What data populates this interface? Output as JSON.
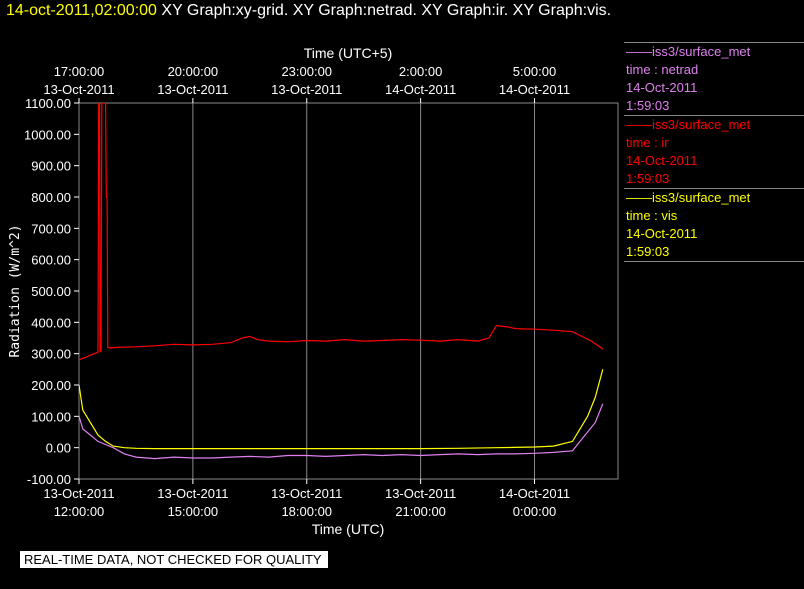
{
  "header": {
    "timestamp": "14-oct-2011,02:00:00",
    "graphs": "XY Graph:xy-grid.  XY Graph:netrad.  XY Graph:ir.  XY Graph:vis."
  },
  "legend": [
    {
      "name": "——iss3/surface_met",
      "var": "time : netrad",
      "date": "14-Oct-2011",
      "time": "1:59:03",
      "color": "#e080f0"
    },
    {
      "name": "——iss3/surface_met",
      "var": "time : ir",
      "date": "14-Oct-2011",
      "time": "1:59:03",
      "color": "#ff0000"
    },
    {
      "name": "——iss3/surface_met",
      "var": "time : vis",
      "date": "14-Oct-2011",
      "time": "1:59:03",
      "color": "#ffff00"
    }
  ],
  "banner": "REAL-TIME DATA, NOT CHECKED FOR QUALITY",
  "chart_data": {
    "type": "line",
    "xlabel": "Time (UTC)",
    "x2label": "Time (UTC+5)",
    "ylabel": "Radiation (W/m^2)",
    "ylim": [
      -100,
      1100
    ],
    "xlim": [
      0,
      14.2
    ],
    "yticks": [
      "1100.00",
      "1000.00",
      "900.00",
      "800.00",
      "700.00",
      "600.00",
      "500.00",
      "400.00",
      "300.00",
      "200.00",
      "100.00",
      "0.00",
      "-100.00"
    ],
    "ytick_values": [
      1100,
      1000,
      900,
      800,
      700,
      600,
      500,
      400,
      300,
      200,
      100,
      0,
      -100
    ],
    "xticks_bottom": [
      {
        "x": 0,
        "date": "13-Oct-2011",
        "time": "12:00:00"
      },
      {
        "x": 3,
        "date": "13-Oct-2011",
        "time": "15:00:00"
      },
      {
        "x": 6,
        "date": "13-Oct-2011",
        "time": "18:00:00"
      },
      {
        "x": 9,
        "date": "13-Oct-2011",
        "time": "21:00:00"
      },
      {
        "x": 12,
        "date": "14-Oct-2011",
        "time": "0:00:00"
      }
    ],
    "xticks_top": [
      {
        "x": 0,
        "date": "13-Oct-2011",
        "time": "17:00:00"
      },
      {
        "x": 3,
        "date": "13-Oct-2011",
        "time": "20:00:00"
      },
      {
        "x": 6,
        "date": "13-Oct-2011",
        "time": "23:00:00"
      },
      {
        "x": 9,
        "date": "14-Oct-2011",
        "time": "2:00:00"
      },
      {
        "x": 12,
        "date": "14-Oct-2011",
        "time": "5:00:00"
      }
    ],
    "grid": true,
    "series": [
      {
        "name": "ir",
        "color": "#ff0000",
        "x": [
          0,
          0.2,
          0.4,
          0.5,
          0.52,
          0.54,
          0.56,
          0.58,
          0.6,
          0.7,
          0.72,
          0.74,
          0.76,
          0.78,
          0.8,
          1.0,
          1.5,
          2.0,
          2.5,
          3.0,
          3.5,
          4.0,
          4.3,
          4.5,
          4.7,
          5.0,
          5.5,
          6.0,
          6.5,
          7.0,
          7.5,
          8.0,
          8.5,
          9.0,
          9.5,
          10.0,
          10.5,
          10.8,
          11.0,
          11.3,
          11.5,
          12.0,
          12.5,
          13.0,
          13.5,
          13.8
        ],
        "y": [
          280,
          290,
          300,
          305,
          1100,
          1100,
          305,
          310,
          1100,
          1100,
          800,
          800,
          320,
          320,
          318,
          320,
          322,
          325,
          330,
          328,
          330,
          335,
          350,
          355,
          345,
          340,
          338,
          342,
          340,
          345,
          340,
          342,
          345,
          343,
          340,
          345,
          340,
          350,
          390,
          385,
          380,
          378,
          375,
          370,
          340,
          315
        ]
      },
      {
        "name": "netrad",
        "color": "#e080f0",
        "x": [
          0,
          0.1,
          0.3,
          0.5,
          0.7,
          0.9,
          1.2,
          1.5,
          2.0,
          2.5,
          3.0,
          3.5,
          4.0,
          4.5,
          5.0,
          5.5,
          6.0,
          6.5,
          7.0,
          7.5,
          8.0,
          8.5,
          9.0,
          9.5,
          10.0,
          10.5,
          11.0,
          11.5,
          12.0,
          12.5,
          13.0,
          13.2,
          13.4,
          13.6,
          13.8
        ],
        "y": [
          100,
          60,
          40,
          20,
          10,
          0,
          -20,
          -30,
          -35,
          -30,
          -33,
          -33,
          -30,
          -28,
          -30,
          -25,
          -25,
          -28,
          -25,
          -22,
          -25,
          -22,
          -25,
          -22,
          -20,
          -22,
          -20,
          -20,
          -18,
          -15,
          -10,
          20,
          50,
          80,
          140
        ]
      },
      {
        "name": "vis",
        "color": "#ffff00",
        "x": [
          0,
          0.1,
          0.3,
          0.5,
          0.7,
          0.9,
          1.2,
          1.5,
          2.0,
          3.0,
          4.0,
          5.0,
          6.0,
          7.0,
          8.0,
          9.0,
          10.0,
          11.0,
          12.0,
          12.5,
          13.0,
          13.2,
          13.4,
          13.6,
          13.8
        ],
        "y": [
          200,
          120,
          80,
          40,
          20,
          5,
          0,
          -2,
          -3,
          -3,
          -3,
          -3,
          -3,
          -3,
          -3,
          -3,
          -2,
          0,
          2,
          5,
          20,
          60,
          100,
          160,
          250
        ]
      }
    ]
  }
}
